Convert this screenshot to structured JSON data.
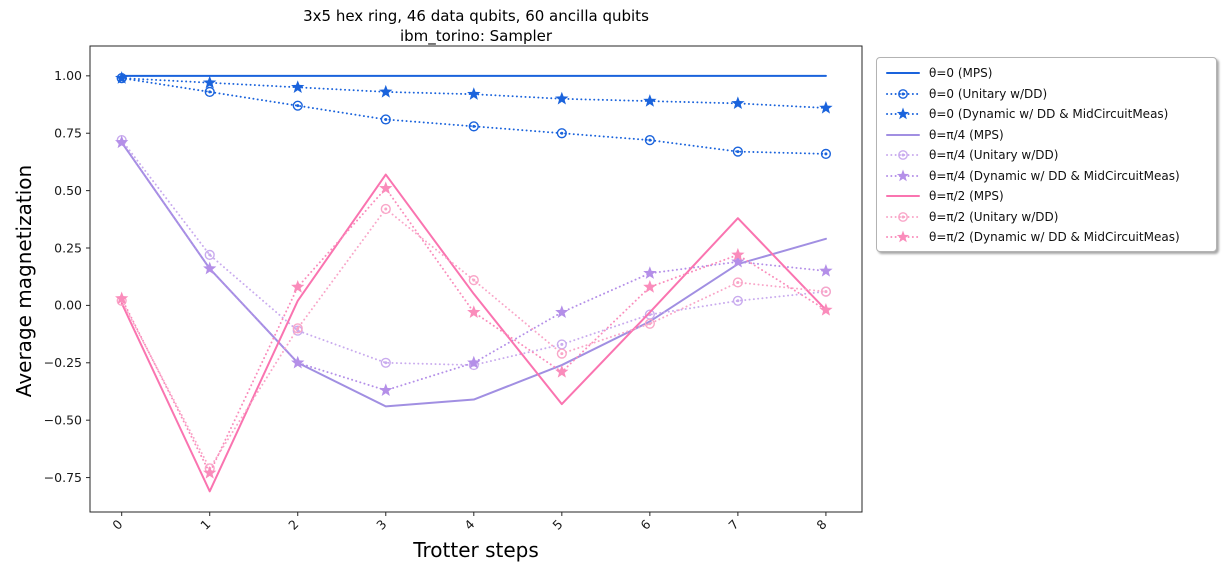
{
  "figure": {
    "title_line1": "3x5 hex ring, 46 data qubits, 60 ancilla qubits",
    "title_line2": "ibm_torino: Sampler"
  },
  "chart_data": {
    "type": "line",
    "title": "3x5 hex ring, 46 data qubits, 60 ancilla qubits\nibm_torino: Sampler",
    "xlabel": "Trotter steps",
    "ylabel": "Average magnetization",
    "x": [
      0,
      1,
      2,
      3,
      4,
      5,
      6,
      7,
      8
    ],
    "xtick_labels": [
      "0",
      "1",
      "2",
      "3",
      "4",
      "5",
      "6",
      "7",
      "8"
    ],
    "ytick_values": [
      1.0,
      0.75,
      0.5,
      0.25,
      0.0,
      -0.25,
      -0.5,
      -0.75
    ],
    "ytick_labels": [
      "1.00",
      "0.75",
      "0.50",
      "0.25",
      "0.00",
      "−0.25",
      "−0.50",
      "−0.75"
    ],
    "xlim": [
      -0.36,
      8.41
    ],
    "ylim": [
      -0.9,
      1.13
    ],
    "grid": false,
    "legend_position": "outside-right",
    "series": [
      {
        "name": "θ=0 (MPS)",
        "color": "#1a63dc",
        "linestyle": "solid",
        "marker": "none",
        "values": [
          1.0,
          1.0,
          1.0,
          1.0,
          1.0,
          1.0,
          1.0,
          1.0,
          1.0
        ]
      },
      {
        "name": "θ=0 (Unitary w/DD)",
        "color": "#1a63dc",
        "linestyle": "dotted",
        "marker": "circle",
        "values": [
          0.99,
          0.93,
          0.87,
          0.81,
          0.78,
          0.75,
          0.72,
          0.67,
          0.66
        ]
      },
      {
        "name": "θ=0 (Dynamic w/ DD & MidCircuitMeas)",
        "color": "#1a63dc",
        "linestyle": "dotted",
        "marker": "star",
        "values": [
          0.99,
          0.97,
          0.95,
          0.93,
          0.92,
          0.9,
          0.89,
          0.88,
          0.86
        ]
      },
      {
        "name": "θ=π/4 (MPS)",
        "color": "#a18fe2",
        "linestyle": "solid",
        "marker": "none",
        "values": [
          0.71,
          0.16,
          -0.25,
          -0.44,
          -0.41,
          -0.26,
          -0.07,
          0.18,
          0.29
        ]
      },
      {
        "name": "θ=π/4 (Unitary w/DD)",
        "color": "#c9abee",
        "linestyle": "dotted",
        "marker": "circle",
        "values": [
          0.72,
          0.22,
          -0.11,
          -0.25,
          -0.26,
          -0.17,
          -0.04,
          0.02,
          0.06
        ]
      },
      {
        "name": "θ=π/4 (Dynamic w/ DD & MidCircuitMeas)",
        "color": "#b48fe8",
        "linestyle": "dotted",
        "marker": "star",
        "values": [
          0.71,
          0.16,
          -0.25,
          -0.37,
          -0.25,
          -0.03,
          0.14,
          0.19,
          0.15
        ]
      },
      {
        "name": "θ=π/2 (MPS)",
        "color": "#fa74b0",
        "linestyle": "solid",
        "marker": "none",
        "values": [
          0.01,
          -0.81,
          0.02,
          0.57,
          0.05,
          -0.43,
          -0.03,
          0.38,
          -0.02
        ]
      },
      {
        "name": "θ=π/2 (Unitary w/DD)",
        "color": "#f9a6c8",
        "linestyle": "dotted",
        "marker": "circle",
        "values": [
          0.02,
          -0.71,
          -0.1,
          0.42,
          0.11,
          -0.21,
          -0.08,
          0.1,
          0.06
        ]
      },
      {
        "name": "θ=π/2 (Dynamic w/ DD & MidCircuitMeas)",
        "color": "#fa8cbb",
        "linestyle": "dotted",
        "marker": "star",
        "values": [
          0.03,
          -0.73,
          0.08,
          0.51,
          -0.03,
          -0.29,
          0.08,
          0.22,
          -0.02
        ]
      }
    ]
  }
}
